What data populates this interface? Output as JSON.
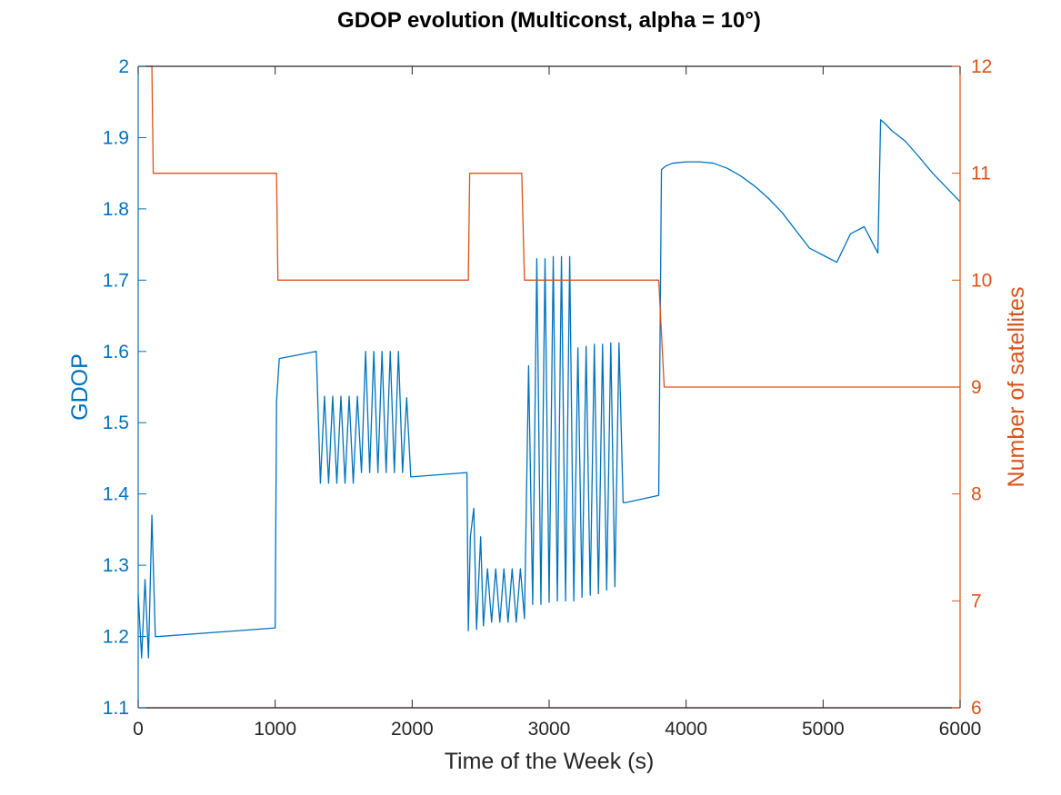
{
  "chart_data": {
    "type": "line",
    "title": "GDOP evolution (Multiconst, alpha = 10°)",
    "xlabel": "Time of the Week (s)",
    "ylabel_left": "GDOP",
    "ylabel_right": "Number of satellites",
    "xlim": [
      0,
      6000
    ],
    "ylim_left": [
      1.1,
      2.0
    ],
    "ylim_right": [
      6,
      12
    ],
    "x_ticks": [
      "0",
      "1000",
      "2000",
      "3000",
      "4000",
      "5000",
      "6000"
    ],
    "y_ticks_left": [
      "1.1",
      "1.2",
      "1.3",
      "1.4",
      "1.5",
      "1.6",
      "1.7",
      "1.8",
      "1.9",
      "2"
    ],
    "y_ticks_right": [
      "6",
      "7",
      "8",
      "9",
      "10",
      "11",
      "12"
    ],
    "grid": false,
    "colors": {
      "left": "#0072BD",
      "right": "#D95319",
      "axis": "#262626"
    },
    "series": [
      {
        "axis": "left",
        "x": [
          0,
          25,
          50,
          75,
          100,
          125,
          150,
          1000,
          1010,
          1030,
          1300,
          1330,
          1360,
          1390,
          1420,
          1450,
          1480,
          1510,
          1540,
          1570,
          1600,
          1630,
          1660,
          1690,
          1720,
          1750,
          1780,
          1810,
          1840,
          1870,
          1900,
          1930,
          1960,
          1990,
          2400,
          2410,
          2425,
          2450,
          2470,
          2500,
          2520,
          2550,
          2580,
          2610,
          2640,
          2670,
          2700,
          2730,
          2760,
          2790,
          2820,
          2850,
          2880,
          2910,
          2940,
          2970,
          3000,
          3030,
          3060,
          3090,
          3120,
          3150,
          3180,
          3210,
          3240,
          3270,
          3300,
          3330,
          3360,
          3390,
          3420,
          3450,
          3480,
          3510,
          3540,
          3560,
          3800,
          3820,
          3850,
          3900,
          4000,
          4100,
          4200,
          4300,
          4400,
          4500,
          4600,
          4700,
          4800,
          4900,
          4950,
          5000,
          5100,
          5200,
          5300,
          5400,
          5420,
          5450,
          5500,
          5600,
          5700,
          5800,
          5900,
          6000
        ],
        "y": [
          1.26,
          1.17,
          1.28,
          1.17,
          1.37,
          1.2,
          1.2,
          1.212,
          1.53,
          1.59,
          1.6,
          1.415,
          1.537,
          1.415,
          1.537,
          1.415,
          1.537,
          1.415,
          1.537,
          1.415,
          1.537,
          1.43,
          1.6,
          1.43,
          1.6,
          1.43,
          1.6,
          1.43,
          1.6,
          1.43,
          1.6,
          1.43,
          1.535,
          1.424,
          1.43,
          1.208,
          1.34,
          1.38,
          1.21,
          1.34,
          1.215,
          1.295,
          1.22,
          1.295,
          1.22,
          1.295,
          1.22,
          1.295,
          1.22,
          1.295,
          1.225,
          1.58,
          1.245,
          1.73,
          1.245,
          1.73,
          1.248,
          1.733,
          1.25,
          1.733,
          1.25,
          1.733,
          1.25,
          1.605,
          1.255,
          1.607,
          1.258,
          1.61,
          1.26,
          1.61,
          1.265,
          1.612,
          1.27,
          1.612,
          1.388,
          1.388,
          1.398,
          1.855,
          1.86,
          1.864,
          1.866,
          1.866,
          1.864,
          1.857,
          1.846,
          1.832,
          1.815,
          1.795,
          1.77,
          1.745,
          1.74,
          1.735,
          1.725,
          1.765,
          1.775,
          1.738,
          1.925,
          1.92,
          1.91,
          1.895,
          1.873,
          1.85,
          1.83,
          1.81
        ]
      },
      {
        "axis": "right",
        "x": [
          0,
          100,
          110,
          1000,
          1010,
          1020,
          2400,
          2410,
          2420,
          2800,
          2810,
          2820,
          3800,
          3820,
          3840,
          6000
        ],
        "y": [
          12,
          12,
          11,
          11,
          11,
          10,
          10,
          10,
          11,
          11,
          10.5,
          10,
          10,
          9.5,
          9,
          9
        ]
      },
      {
        "axis": "right",
        "x": [
          0,
          6000
        ],
        "y": [
          6,
          6
        ]
      }
    ]
  }
}
